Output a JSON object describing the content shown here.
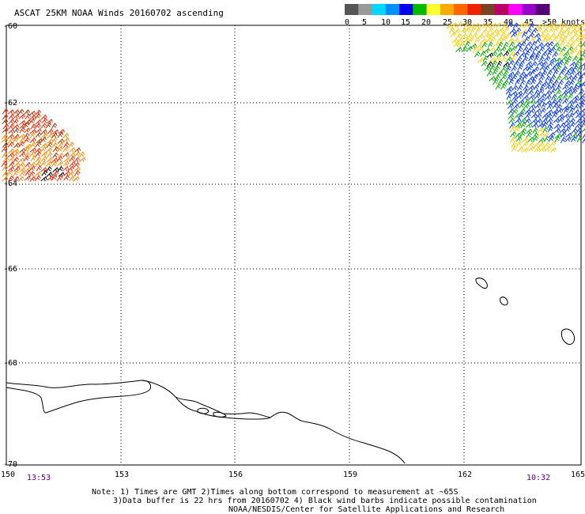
{
  "title": "ASCAT 25KM NOAA Winds 20160702 ascending",
  "legend": {
    "colors": [
      "#555555",
      "#999999",
      "#00d8ff",
      "#0090ff",
      "#0000ee",
      "#00bb00",
      "#ffff33",
      "#ffaa00",
      "#ff6600",
      "#ee2200",
      "#774422",
      "#bb0066",
      "#ff00ff",
      "#9900cc",
      "#550077"
    ],
    "labels": [
      "0",
      "5",
      "10",
      "15",
      "20",
      "25",
      "30",
      "35",
      "40",
      "45",
      ">50 knots"
    ]
  },
  "axes": {
    "lat_labels": [
      "-60",
      "-62",
      "-64",
      "-66",
      "-68",
      "-70"
    ],
    "lon_labels": [
      "150",
      "153",
      "156",
      "159",
      "162",
      "165"
    ]
  },
  "times": {
    "left": "13:53",
    "right": "10:32"
  },
  "notes": {
    "line1": "Note: 1) Times are GMT 2)Times along bottom correspond to measurement at ~65S",
    "line2": "3)Data buffer is 22 hrs from 20160702 4) Black wind barbs indicate possible contamination",
    "line3": "NOAA/NESDIS/Center for Satellite Applications and Research"
  },
  "wind_colors": {
    "yellow": "#ffcc00",
    "green": "#00aa00",
    "blue": "#0033ff",
    "orange": "#ff8800",
    "red": "#ee2200",
    "maroon": "#993300",
    "black": "#000000"
  }
}
